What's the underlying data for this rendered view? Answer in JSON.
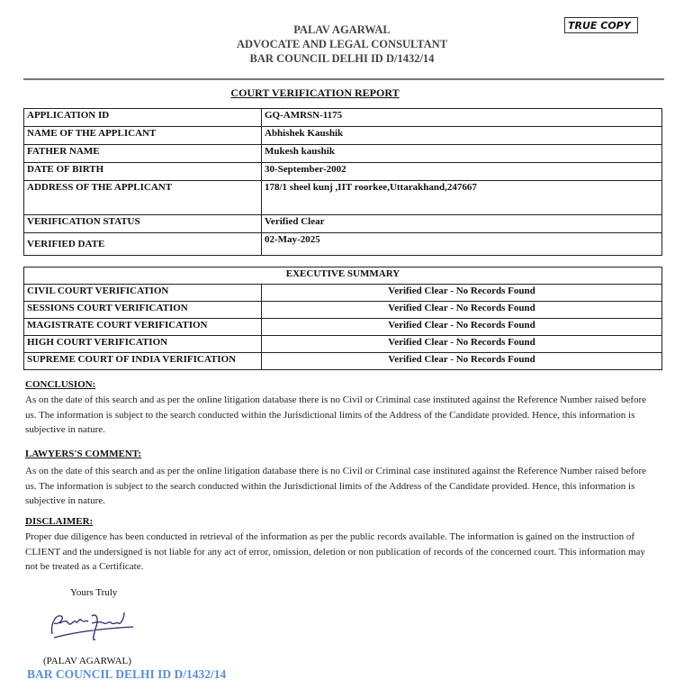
{
  "header": {
    "name": "PALAV AGARWAL",
    "role": "ADVOCATE AND LEGAL CONSULTANT",
    "bar_id": "BAR COUNCIL DELHI ID D/1432/14",
    "stamp": "TRUE COPY"
  },
  "title": "COURT VERIFICATION REPORT",
  "details": [
    {
      "label": "APPLICATION ID",
      "value": "GQ-AMRSN-1175"
    },
    {
      "label": "NAME OF THE APPLICANT",
      "value": "Abhishek Kaushik"
    },
    {
      "label": "FATHER NAME",
      "value": "Mukesh kaushik"
    },
    {
      "label": "DATE OF BIRTH",
      "value": "30-September-2002"
    },
    {
      "label": "ADDRESS OF THE APPLICANT",
      "value": "178/1 sheel kunj ,IIT roorkee,Uttarakhand,247667"
    },
    {
      "label": "VERIFICATION STATUS",
      "value": "Verified Clear"
    },
    {
      "label": "VERIFIED DATE",
      "value": "02-May-2025"
    }
  ],
  "summary": {
    "heading": "EXECUTIVE SUMMARY",
    "rows": [
      {
        "label": "CIVIL COURT VERIFICATION",
        "value": "Verified Clear - No Records Found"
      },
      {
        "label": "SESSIONS COURT VERIFICATION",
        "value": "Verified Clear - No Records Found"
      },
      {
        "label": "MAGISTRATE COURT VERIFICATION",
        "value": "Verified Clear - No Records Found"
      },
      {
        "label": "HIGH COURT VERIFICATION",
        "value": "Verified Clear - No Records Found"
      },
      {
        "label": "SUPREME COURT OF INDIA VERIFICATION",
        "value": "Verified Clear - No Records Found"
      }
    ]
  },
  "conclusion": {
    "heading": "CONCLUSION:",
    "text": "As on the date of this search and as per the online litigation database there is no Civil or Criminal case instituted against the Reference Number raised before us. The information is subject to the search conducted within the Jurisdictional limits of the Address of the Candidate provided. Hence, this information is subjective in nature."
  },
  "comment": {
    "heading": "LAWYERS'S COMMENT:",
    "text": "As on the date of this search and as per the online litigation database there is no Civil or Criminal case instituted against the Reference Number raised before us. The information is subject to the search conducted within the Jurisdictional limits of the Address of the Candidate provided. Hence, this information is subjective in nature."
  },
  "disclaimer": {
    "heading": "DISCLAIMER:",
    "text": "Proper due diligence has been conducted in retrieval of the information as per the public records available. The information is gained on the instruction of CLIENT and the undersigned is not liable for any act of error, omission, deletion or non publication of records of the concerned court. This information may not be treated as a Certificate."
  },
  "signature": {
    "closing": "Yours Truly",
    "signature_text": "Palav Agarwal",
    "name": "(PALAV AGARWAL)",
    "bar_id": "BAR COUNCIL DELHI ID D/1432/14",
    "bar_id_color": "#5b8fd6"
  }
}
